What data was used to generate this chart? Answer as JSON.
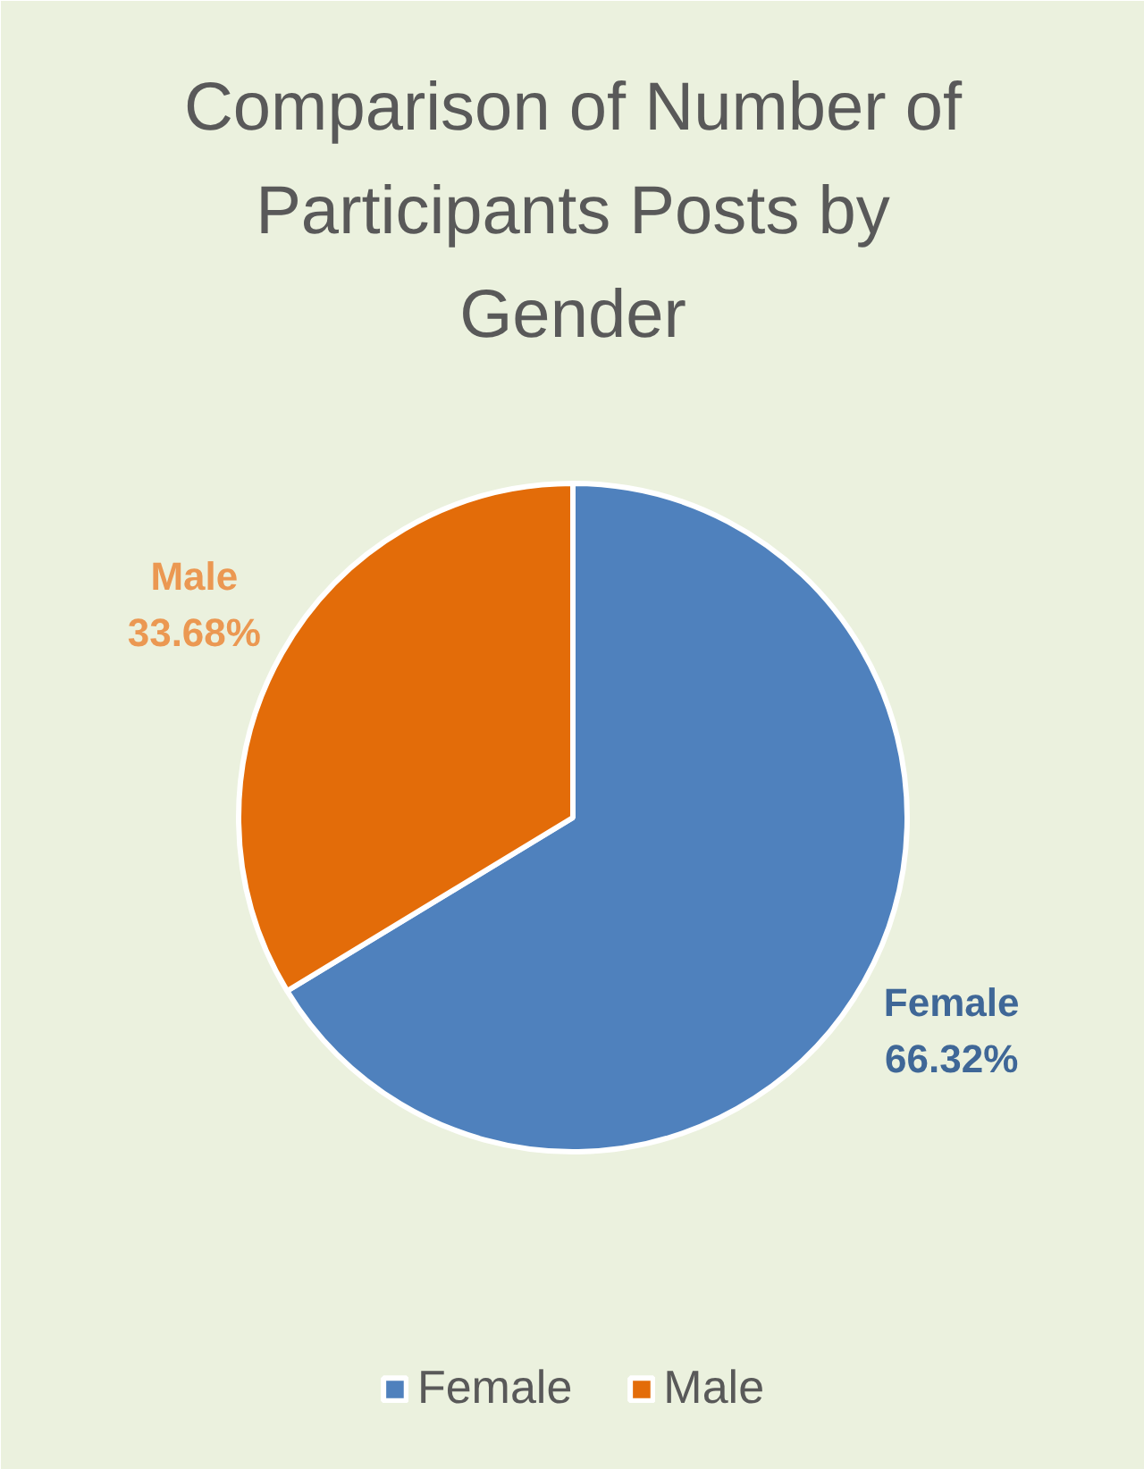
{
  "chart_data": {
    "type": "pie",
    "title": "Comparison of Number of Participants Posts by Gender",
    "categories": [
      "Female",
      "Male"
    ],
    "values": [
      66.32,
      33.68
    ],
    "colors": [
      "#4f81bd",
      "#e36c09"
    ],
    "value_labels": [
      "66.32%",
      "33.68%"
    ],
    "legend": "bottom"
  }
}
